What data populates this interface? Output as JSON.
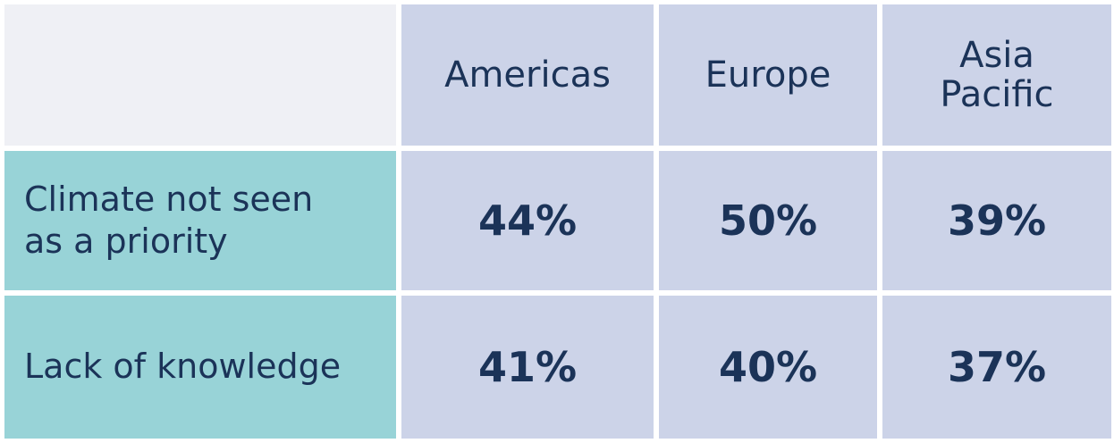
{
  "table": {
    "header": [
      "",
      "Americas",
      "Europe",
      "Asia Pacific"
    ],
    "rows": [
      [
        "Climate not seen as a priority",
        "44%",
        "50%",
        "39%"
      ],
      [
        "Lack of knowledge",
        "41%",
        "40%",
        "37%"
      ]
    ]
  }
}
